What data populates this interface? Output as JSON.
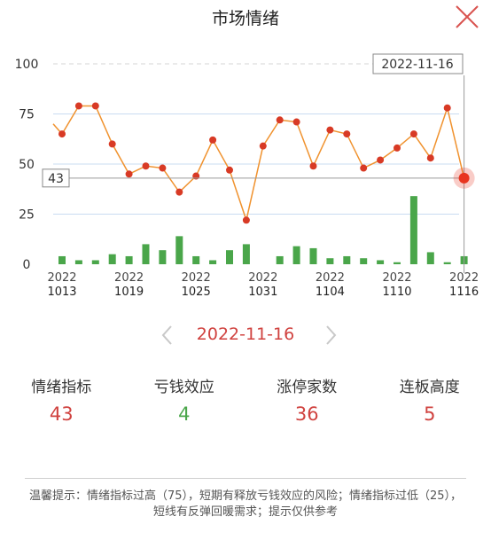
{
  "header": {
    "title": "市场情绪"
  },
  "colors": {
    "line": "#f0922e",
    "point": "#d83a25",
    "bar": "#4aa64a",
    "highlight": "#e8351f",
    "red": "#d0423f",
    "green": "#4aa64a",
    "close": "#d9534f"
  },
  "icons": {
    "close": "close-icon",
    "prev": "chevron-left-icon",
    "next": "chevron-right-icon"
  },
  "nav": {
    "date": "2022-11-16"
  },
  "metrics": [
    {
      "label": "情绪指标",
      "value": "43",
      "color": "red"
    },
    {
      "label": "亏钱效应",
      "value": "4",
      "color": "green"
    },
    {
      "label": "涨停家数",
      "value": "36",
      "color": "red"
    },
    {
      "label": "连板高度",
      "value": "5",
      "color": "red"
    }
  ],
  "note": "温馨提示：情绪指标过高（75），短期有释放亏钱效应的风险；情绪指标过低（25），短线有反弹回暖需求；提示仅供参考",
  "chart_data": {
    "type": "line",
    "y_ticks": [
      "100",
      "75",
      "50",
      "25",
      "0"
    ],
    "ylim": [
      0,
      100
    ],
    "x_tick_labels": [
      {
        "year": "2022",
        "md": "1013"
      },
      {
        "year": "2022",
        "md": "1019"
      },
      {
        "year": "2022",
        "md": "1025"
      },
      {
        "year": "2022",
        "md": "1031"
      },
      {
        "year": "2022",
        "md": "1104"
      },
      {
        "year": "2022",
        "md": "1110"
      },
      {
        "year": "2022",
        "md": "1116"
      }
    ],
    "x_tick_index": [
      0,
      4,
      8,
      12,
      16,
      20,
      24
    ],
    "line_values": [
      65,
      79,
      79,
      60,
      45,
      49,
      48,
      36,
      44,
      62,
      47,
      22,
      59,
      72,
      71,
      49,
      67,
      65,
      48,
      52,
      58,
      65,
      53,
      78,
      43
    ],
    "line_value_before_first": 70,
    "bar_values": [
      4,
      2,
      2,
      5,
      4,
      10,
      7,
      14,
      4,
      2,
      7,
      10,
      0,
      4,
      9,
      8,
      3,
      4,
      3,
      2,
      1,
      34,
      6,
      1,
      4
    ],
    "reference_lines": [
      75,
      50,
      25
    ],
    "crosshair": {
      "date": "2022-11-16",
      "value": "43",
      "index": 24
    }
  }
}
